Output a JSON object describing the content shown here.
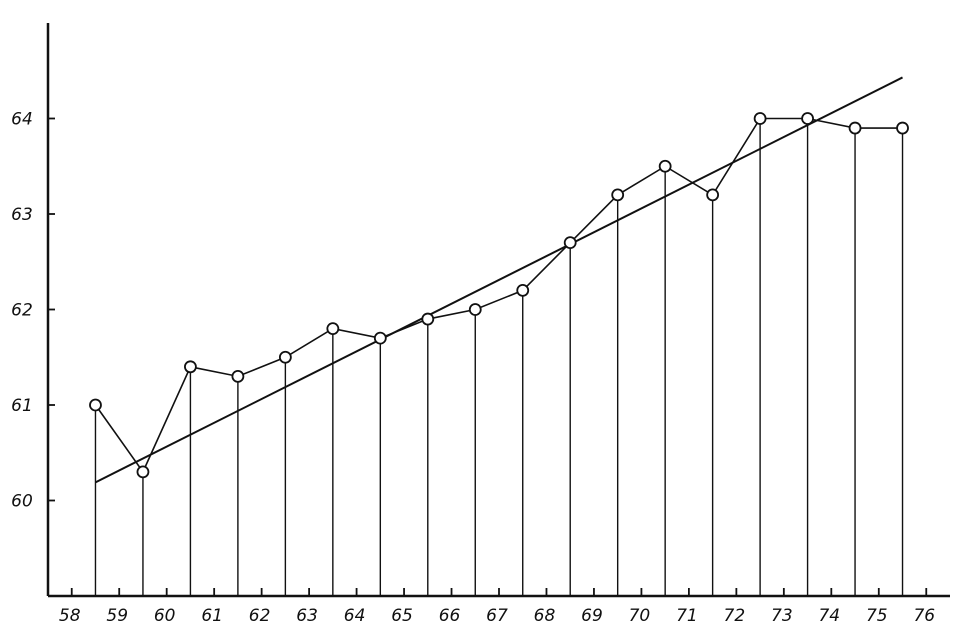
{
  "chart_data": {
    "type": "line",
    "title": "",
    "xlabel": "",
    "ylabel": "",
    "xlim": [
      57.5,
      76.5
    ],
    "ylim": [
      59,
      65
    ],
    "grid": false,
    "x_ticks": [
      "58",
      "59",
      "60",
      "61",
      "62",
      "63",
      "64",
      "65",
      "66",
      "67",
      "68",
      "69",
      "70",
      "71",
      "72",
      "73",
      "74",
      "75",
      "76"
    ],
    "y_ticks": [
      "60",
      "61",
      "62",
      "63",
      "64"
    ],
    "series": [
      {
        "style": "open-circle markers with vertical drop lines",
        "x": [
          58.5,
          59.5,
          60.5,
          61.5,
          62.5,
          63.5,
          64.5,
          65.5,
          66.5,
          67.5,
          68.5,
          69.5,
          70.5,
          71.5,
          72.5,
          73.5,
          74.5,
          75.5
        ],
        "y": [
          61.0,
          60.3,
          61.4,
          61.3,
          61.5,
          61.8,
          61.7,
          61.9,
          62.0,
          62.2,
          62.7,
          63.2,
          63.5,
          63.2,
          64.0,
          64.0,
          63.9,
          63.9
        ]
      }
    ],
    "trend_line": {
      "x": [
        58.5,
        75.5
      ],
      "y": [
        60.19,
        64.43
      ]
    },
    "colors": {
      "ink": "#111111",
      "background": "#ffffff"
    }
  }
}
